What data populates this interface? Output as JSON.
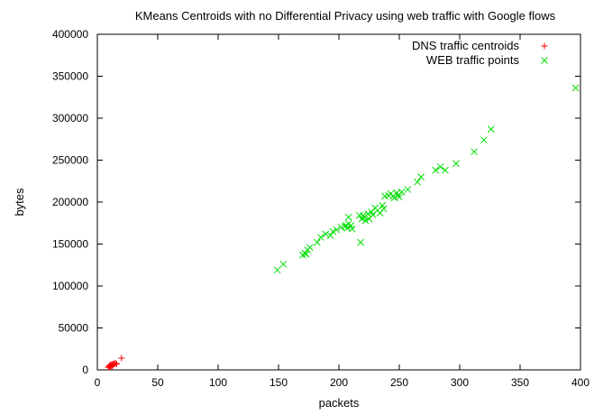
{
  "chart_data": {
    "type": "scatter",
    "title": "KMeans Centroids with no Differential Privacy using web traffic with Google flows",
    "xlabel": "packets",
    "ylabel": "bytes",
    "xlim": [
      0,
      400
    ],
    "ylim": [
      0,
      400000
    ],
    "xticks": [
      0,
      50,
      100,
      150,
      200,
      250,
      300,
      350,
      400
    ],
    "yticks": [
      0,
      50000,
      100000,
      150000,
      200000,
      250000,
      300000,
      350000,
      400000
    ],
    "grid": false,
    "legend_position": "top-right",
    "series": [
      {
        "name": "DNS traffic centroids",
        "marker": "plus",
        "color": "#ff0000",
        "points": [
          [
            9,
            3000
          ],
          [
            10,
            4000
          ],
          [
            10,
            5000
          ],
          [
            11,
            5500
          ],
          [
            11,
            6000
          ],
          [
            12,
            5000
          ],
          [
            12,
            6500
          ],
          [
            13,
            7000
          ],
          [
            14,
            7500
          ],
          [
            10,
            3500
          ],
          [
            11,
            4500
          ],
          [
            12,
            4000
          ],
          [
            13,
            5500
          ],
          [
            15,
            8000
          ],
          [
            16,
            7000
          ],
          [
            20,
            14000
          ]
        ]
      },
      {
        "name": "WEB traffic points",
        "marker": "cross",
        "color": "#00dd00",
        "points": [
          [
            149,
            119000
          ],
          [
            154,
            126000
          ],
          [
            170,
            137000
          ],
          [
            172,
            139000
          ],
          [
            173,
            138000
          ],
          [
            174,
            143000
          ],
          [
            176,
            146000
          ],
          [
            182,
            152000
          ],
          [
            185,
            158000
          ],
          [
            189,
            162000
          ],
          [
            193,
            160000
          ],
          [
            195,
            165000
          ],
          [
            198,
            167000
          ],
          [
            202,
            170000
          ],
          [
            205,
            171000
          ],
          [
            206,
            172000
          ],
          [
            207,
            169000
          ],
          [
            208,
            174000
          ],
          [
            208,
            182000
          ],
          [
            210,
            172000
          ],
          [
            211,
            168000
          ],
          [
            217,
            184000
          ],
          [
            218,
            152000
          ],
          [
            219,
            180000
          ],
          [
            220,
            184000
          ],
          [
            221,
            182000
          ],
          [
            222,
            178000
          ],
          [
            224,
            186000
          ],
          [
            225,
            180000
          ],
          [
            227,
            188000
          ],
          [
            228,
            185000
          ],
          [
            230,
            193000
          ],
          [
            232,
            190000
          ],
          [
            234,
            187000
          ],
          [
            236,
            196000
          ],
          [
            237,
            192000
          ],
          [
            238,
            207000
          ],
          [
            241,
            208000
          ],
          [
            243,
            210000
          ],
          [
            245,
            207000
          ],
          [
            246,
            205000
          ],
          [
            248,
            211000
          ],
          [
            249,
            208000
          ],
          [
            250,
            206000
          ],
          [
            252,
            212000
          ],
          [
            257,
            215000
          ],
          [
            265,
            224000
          ],
          [
            268,
            230000
          ],
          [
            280,
            238000
          ],
          [
            284,
            242000
          ],
          [
            288,
            238000
          ],
          [
            297,
            246000
          ],
          [
            312,
            260000
          ],
          [
            320,
            274000
          ],
          [
            326,
            287000
          ],
          [
            396,
            336000
          ]
        ]
      }
    ]
  }
}
